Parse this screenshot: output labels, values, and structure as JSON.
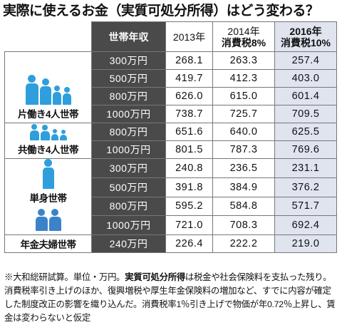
{
  "title": "実際に使えるお金（実質可処分所得）はどう変わる？",
  "colors": {
    "header_dark": "#4a4a4a",
    "alt_column": "#dfe4ef",
    "icon_blue": "#2e9fdc"
  },
  "table": {
    "headers": {
      "income": "世帯年収",
      "y2013": "2013年",
      "y2014_line1": "2014年",
      "y2014_line2": "消費税8%",
      "y2016_line1": "2016年",
      "y2016_line2": "消費税10%"
    },
    "groups": {
      "single_income_family": "片働き4人世帯",
      "dual_income_family": "共働き4人世帯",
      "single": "単身世帯",
      "pensioner_couple": "年金夫婦世帯"
    },
    "rows": [
      {
        "group": "single_income_family",
        "income": "300万円",
        "v2013": "268.1",
        "v2014": "263.3",
        "v2016": "257.4"
      },
      {
        "group": "single_income_family",
        "income": "500万円",
        "v2013": "419.7",
        "v2014": "412.3",
        "v2016": "403.0"
      },
      {
        "group": "single_income_family",
        "income": "800万円",
        "v2013": "626.0",
        "v2014": "615.0",
        "v2016": "601.4"
      },
      {
        "group": "single_income_family",
        "income": "1000万円",
        "v2013": "738.7",
        "v2014": "725.7",
        "v2016": "709.5"
      },
      {
        "group": "dual_income_family",
        "income": "800万円",
        "v2013": "651.6",
        "v2014": "640.0",
        "v2016": "625.5"
      },
      {
        "group": "dual_income_family",
        "income": "1000万円",
        "v2013": "801.5",
        "v2014": "787.3",
        "v2016": "769.6"
      },
      {
        "group": "single",
        "income": "300万円",
        "v2013": "240.8",
        "v2014": "236.5",
        "v2016": "231.1"
      },
      {
        "group": "single",
        "income": "500万円",
        "v2013": "391.8",
        "v2014": "384.9",
        "v2016": "376.2"
      },
      {
        "group": "single",
        "income": "800万円",
        "v2013": "595.2",
        "v2014": "584.8",
        "v2016": "571.7"
      },
      {
        "group": "single",
        "income": "1000万円",
        "v2013": "721.0",
        "v2014": "708.3",
        "v2016": "692.4"
      },
      {
        "group": "pensioner_couple",
        "income": "240万円",
        "v2013": "226.4",
        "v2014": "222.2",
        "v2016": "219.0"
      }
    ]
  },
  "footnote": {
    "part1": "※大和総研試算。単位・万円。",
    "bold": "実質可処分所得",
    "part2": "は税金や社会保険料を支払った残り。消費税率引き上げのほか、復興増税や厚生年金保険料の増加など、すでに内容が確定した制度改正の影響を織り込んだ。消費税率1％引き上げで物価が年0.72％上昇し、賃金は変わらないと仮定"
  },
  "chart_data": {
    "type": "table",
    "title": "実際に使えるお金（実質可処分所得）はどう変わる？",
    "columns": [
      "世帯年収",
      "2013年",
      "2014年 消費税8%",
      "2016年 消費税10%"
    ],
    "row_groups": [
      {
        "name": "片働き4人世帯",
        "rows": [
          [
            "300万円",
            268.1,
            263.3,
            257.4
          ],
          [
            "500万円",
            419.7,
            412.3,
            403.0
          ],
          [
            "800万円",
            626.0,
            615.0,
            601.4
          ],
          [
            "1000万円",
            738.7,
            725.7,
            709.5
          ]
        ]
      },
      {
        "name": "共働き4人世帯",
        "rows": [
          [
            "800万円",
            651.6,
            640.0,
            625.5
          ],
          [
            "1000万円",
            801.5,
            787.3,
            769.6
          ]
        ]
      },
      {
        "name": "単身世帯",
        "rows": [
          [
            "300万円",
            240.8,
            236.5,
            231.1
          ],
          [
            "500万円",
            391.8,
            384.9,
            376.2
          ],
          [
            "800万円",
            595.2,
            584.8,
            571.7
          ],
          [
            "1000万円",
            721.0,
            708.3,
            692.4
          ]
        ]
      },
      {
        "name": "年金夫婦世帯",
        "rows": [
          [
            "240万円",
            226.4,
            222.2,
            219.0
          ]
        ]
      }
    ]
  }
}
